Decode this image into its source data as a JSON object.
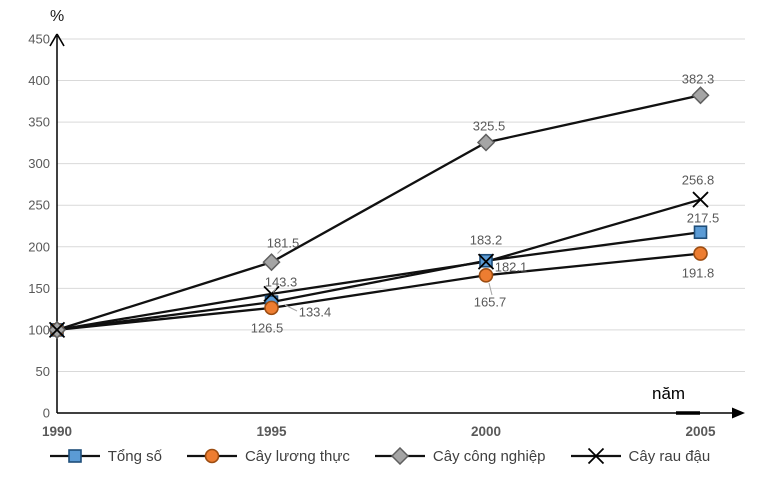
{
  "chart_data": {
    "type": "line",
    "title": "",
    "ylabel": "%",
    "xlabel": "năm",
    "categories": [
      "1990",
      "1995",
      "2000",
      "2005"
    ],
    "y_ticks": [
      0,
      50,
      100,
      150,
      200,
      250,
      300,
      350,
      400,
      450
    ],
    "ylim": [
      0,
      450
    ],
    "grid": true,
    "legend_position": "bottom",
    "line_color": "#111111",
    "gridline_color": "#d9d9d9",
    "axis_color": "#000000",
    "tick_label_color": "#595959",
    "data_label_color": "#595959",
    "series": [
      {
        "name": "Tổng số",
        "marker": "square",
        "marker_fill": "#5B9BD5",
        "marker_border": "#1F4E79",
        "values": [
          100,
          133.4,
          183.2,
          217.5
        ],
        "data_labels": [
          "",
          "133.4",
          "183.2",
          "217.5"
        ]
      },
      {
        "name": "Cây lương thực",
        "marker": "circle",
        "marker_fill": "#ED7D31",
        "marker_border": "#9C4D12",
        "values": [
          100,
          126.5,
          165.7,
          191.8
        ],
        "data_labels": [
          "",
          "126.5",
          "165.7",
          "191.8"
        ]
      },
      {
        "name": "Cây công nghiệp",
        "marker": "diamond",
        "marker_fill": "#A5A5A5",
        "marker_border": "#5f5f5f",
        "values": [
          100,
          181.5,
          325.5,
          382.3
        ],
        "data_labels": [
          "",
          "181.5",
          "325.5",
          "382.3"
        ]
      },
      {
        "name": "Cây rau đậu",
        "marker": "x",
        "marker_fill": "#000000",
        "marker_border": "#000000",
        "values": [
          100,
          143.3,
          182.1,
          256.8
        ],
        "data_labels": [
          "",
          "143.3",
          "182.1",
          "256.8"
        ]
      }
    ]
  }
}
